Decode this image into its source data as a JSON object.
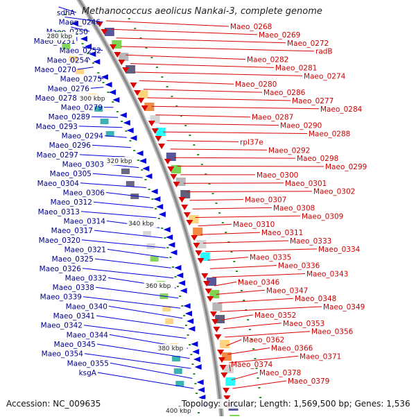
{
  "title": "Methanococcus aeolicus Nankai-3, complete genome",
  "accession": "Accession: NC_009635",
  "summary": "Topology: circular; Length: 1,569,500 bp; Genes: 1,536",
  "colors": {
    "forward": "#0000dd",
    "reverse": "#dd0000",
    "left_label": "#00008b",
    "right_label": "#cc0000",
    "backbone": "#888888",
    "tick": "#2d8a2d"
  },
  "scale_labels": [
    "280 kbp",
    "300 kbp",
    "320 kbp",
    "340 kbp",
    "360 kbp",
    "380 kbp",
    "400 kbp"
  ],
  "left_genes": [
    "sdhA",
    "Maeo_0246",
    "Maeo_0250",
    "Maeo_0251",
    "Maeo_0252",
    "Maeo_0254",
    "Maeo_0270",
    "Maeo_0275",
    "Maeo_0276",
    "Maeo_0278",
    "Maeo_0279",
    "Maeo_0289",
    "Maeo_0293",
    "Maeo_0294",
    "Maeo_0296",
    "Maeo_0297",
    "Maeo_0303",
    "Maeo_0305",
    "Maeo_0304",
    "Maeo_0306",
    "Maeo_0312",
    "Maeo_0313",
    "Maeo_0314",
    "Maeo_0317",
    "Maeo_0320",
    "Maeo_0321",
    "Maeo_0325",
    "Maeo_0326",
    "Maeo_0332",
    "Maeo_0338",
    "Maeo_0339",
    "Maeo_0340",
    "Maeo_0341",
    "Maeo_0342",
    "Maeo_0344",
    "Maeo_0345",
    "Maeo_0354",
    "Maeo_0355",
    "ksgA"
  ],
  "right_genes": [
    "Maeo_0268",
    "Maeo_0269",
    "Maeo_0272",
    "radB",
    "Maeo_0282",
    "Maeo_0281",
    "Maeo_0274",
    "Maeo_0280",
    "Maeo_0286",
    "Maeo_0277",
    "Maeo_0284",
    "Maeo_0287",
    "Maeo_0290",
    "Maeo_0288",
    "rpl37e",
    "Maeo_0292",
    "Maeo_0298",
    "Maeo_0299",
    "Maeo_0300",
    "Maeo_0301",
    "Maeo_0302",
    "Maeo_0307",
    "Maeo_0308",
    "Maeo_0309",
    "Maeo_0310",
    "Maeo_0311",
    "Maeo_0333",
    "Maeo_0334",
    "Maeo_0335",
    "Maeo_0336",
    "Maeo_0343",
    "Maeo_0346",
    "Maeo_0347",
    "Maeo_0348",
    "Maeo_0349",
    "Maeo_0352",
    "Maeo_0353",
    "Maeo_0356",
    "Maeo_0362",
    "Maeo_0366",
    "Maeo_0371",
    "Maeo_0374",
    "Maeo_0378",
    "Maeo_0379"
  ]
}
